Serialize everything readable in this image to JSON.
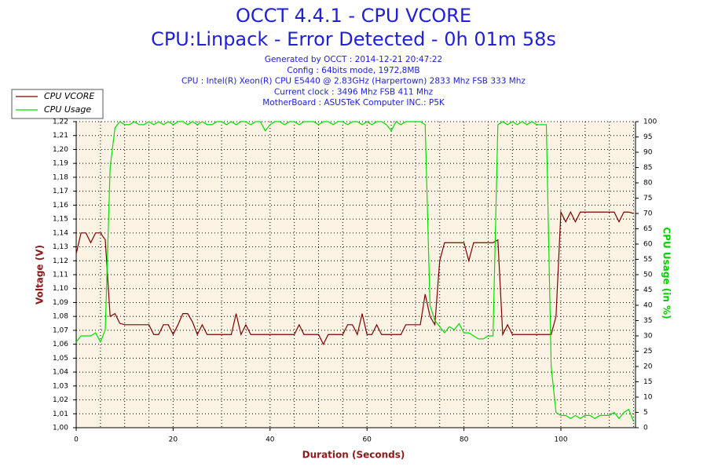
{
  "chart_data": {
    "type": "line",
    "title": "OCCT 4.4.1 - CPU VCORE",
    "subtitle": "CPU:Linpack - Error Detected - 0h 01m 58s",
    "info": [
      "Generated by OCCT : 2014-12-21 20:47:22",
      "Config : 64bits mode, 1972,8MB",
      "CPU : Intel(R) Xeon(R) CPU E5440 @ 2.83GHz (Harpertown) 2833 Mhz FSB 333 Mhz",
      "Current clock : 3496 Mhz FSB 411 Mhz",
      "MotherBoard : ASUSTeK Computer INC.: P5K"
    ],
    "x_label": "Duration (Seconds)",
    "y_label": "Voltage (V)",
    "y2_label": "CPU Usage (in %)",
    "x": [
      0,
      1,
      2,
      3,
      4,
      5,
      6,
      7,
      8,
      9,
      10,
      11,
      12,
      13,
      14,
      15,
      16,
      17,
      18,
      19,
      20,
      21,
      22,
      23,
      24,
      25,
      26,
      27,
      28,
      29,
      30,
      31,
      32,
      33,
      34,
      35,
      36,
      37,
      38,
      39,
      40,
      41,
      42,
      43,
      44,
      45,
      46,
      47,
      48,
      49,
      50,
      51,
      52,
      53,
      54,
      55,
      56,
      57,
      58,
      59,
      60,
      61,
      62,
      63,
      64,
      65,
      66,
      67,
      68,
      69,
      70,
      71,
      72,
      73,
      74,
      75,
      76,
      77,
      78,
      79,
      80,
      81,
      82,
      83,
      84,
      85,
      86,
      87,
      88,
      89,
      90,
      91,
      92,
      93,
      94,
      95,
      96,
      97,
      98,
      99,
      100,
      101,
      102,
      103,
      104,
      105,
      106,
      107,
      108,
      109,
      110,
      111,
      112,
      113,
      114,
      115
    ],
    "series": [
      {
        "name": "CPU VCORE",
        "color": "#800000",
        "axis": "y",
        "values": [
          1.125,
          1.14,
          1.14,
          1.133,
          1.14,
          1.14,
          1.135,
          1.08,
          1.082,
          1.075,
          1.074,
          1.074,
          1.074,
          1.074,
          1.074,
          1.074,
          1.067,
          1.067,
          1.074,
          1.074,
          1.067,
          1.074,
          1.082,
          1.082,
          1.076,
          1.067,
          1.074,
          1.067,
          1.067,
          1.067,
          1.067,
          1.067,
          1.067,
          1.082,
          1.067,
          1.074,
          1.067,
          1.067,
          1.067,
          1.067,
          1.067,
          1.067,
          1.067,
          1.067,
          1.067,
          1.067,
          1.074,
          1.067,
          1.067,
          1.067,
          1.067,
          1.06,
          1.067,
          1.067,
          1.067,
          1.067,
          1.074,
          1.074,
          1.067,
          1.082,
          1.067,
          1.067,
          1.074,
          1.067,
          1.067,
          1.067,
          1.067,
          1.067,
          1.074,
          1.074,
          1.074,
          1.074,
          1.096,
          1.08,
          1.074,
          1.12,
          1.133,
          1.133,
          1.133,
          1.133,
          1.133,
          1.12,
          1.133,
          1.133,
          1.133,
          1.133,
          1.133,
          1.135,
          1.067,
          1.074,
          1.067,
          1.067,
          1.067,
          1.067,
          1.067,
          1.067,
          1.067,
          1.067,
          1.067,
          1.08,
          1.155,
          1.148,
          1.155,
          1.148,
          1.155,
          1.155,
          1.155,
          1.155,
          1.155,
          1.155,
          1.155,
          1.155,
          1.148,
          1.155,
          1.155,
          1.154
        ]
      },
      {
        "name": "CPU Usage",
        "color": "#00e000",
        "axis": "y2",
        "values": [
          28,
          30,
          30,
          30,
          31,
          28,
          32,
          85,
          98,
          100,
          99,
          99,
          100,
          99,
          99,
          100,
          99,
          100,
          99,
          100,
          99,
          100,
          100,
          99,
          100,
          99,
          100,
          99,
          99,
          100,
          100,
          99,
          100,
          99,
          100,
          100,
          99,
          100,
          100,
          97,
          99,
          100,
          100,
          99,
          100,
          100,
          99,
          100,
          100,
          100,
          99,
          100,
          100,
          99,
          100,
          100,
          99,
          100,
          100,
          99,
          100,
          99,
          100,
          100,
          99,
          97,
          100,
          99,
          100,
          100,
          100,
          100,
          99,
          40,
          35,
          33,
          31,
          33,
          32,
          34,
          31,
          31,
          30,
          29,
          29,
          30,
          30,
          99,
          100,
          99,
          100,
          99,
          100,
          99,
          100,
          99,
          99,
          99,
          20,
          5,
          4,
          4,
          3,
          4,
          3,
          4,
          4,
          3,
          4,
          4,
          4,
          5,
          3,
          5,
          6,
          2
        ]
      }
    ],
    "xlim": [
      0,
      115.4
    ],
    "xticks": [
      0,
      20,
      40,
      60,
      80,
      100
    ],
    "xgrid": [
      5,
      10,
      15,
      20,
      25,
      30,
      35,
      40,
      45,
      50,
      55,
      60,
      65,
      70,
      75,
      80,
      85,
      90,
      95,
      100,
      105,
      110,
      115
    ],
    "ylim": [
      1.0,
      1.22
    ],
    "yticks": [
      {
        "value": 1.0,
        "label": "1,00"
      },
      {
        "value": 1.01,
        "label": "1,01"
      },
      {
        "value": 1.02,
        "label": "1,02"
      },
      {
        "value": 1.03,
        "label": "1,03"
      },
      {
        "value": 1.04,
        "label": "1,04"
      },
      {
        "value": 1.05,
        "label": "1,05"
      },
      {
        "value": 1.06,
        "label": "1,06"
      },
      {
        "value": 1.07,
        "label": "1,07"
      },
      {
        "value": 1.08,
        "label": "1,08"
      },
      {
        "value": 1.09,
        "label": "1,09"
      },
      {
        "value": 1.1,
        "label": "1,10"
      },
      {
        "value": 1.11,
        "label": "1,11"
      },
      {
        "value": 1.12,
        "label": "1,12"
      },
      {
        "value": 1.13,
        "label": "1,13"
      },
      {
        "value": 1.14,
        "label": "1,14"
      },
      {
        "value": 1.15,
        "label": "1,15"
      },
      {
        "value": 1.16,
        "label": "1,16"
      },
      {
        "value": 1.17,
        "label": "1,17"
      },
      {
        "value": 1.18,
        "label": "1,18"
      },
      {
        "value": 1.19,
        "label": "1,19"
      },
      {
        "value": 1.2,
        "label": "1,20"
      },
      {
        "value": 1.21,
        "label": "1,21"
      },
      {
        "value": 1.22,
        "label": "1,22"
      }
    ],
    "y2lim": [
      0,
      100
    ],
    "y2ticks": [
      0,
      5,
      10,
      15,
      20,
      25,
      30,
      35,
      40,
      45,
      50,
      55,
      60,
      65,
      70,
      75,
      80,
      85,
      90,
      95,
      100
    ],
    "grid": true,
    "legend": "top-left"
  }
}
